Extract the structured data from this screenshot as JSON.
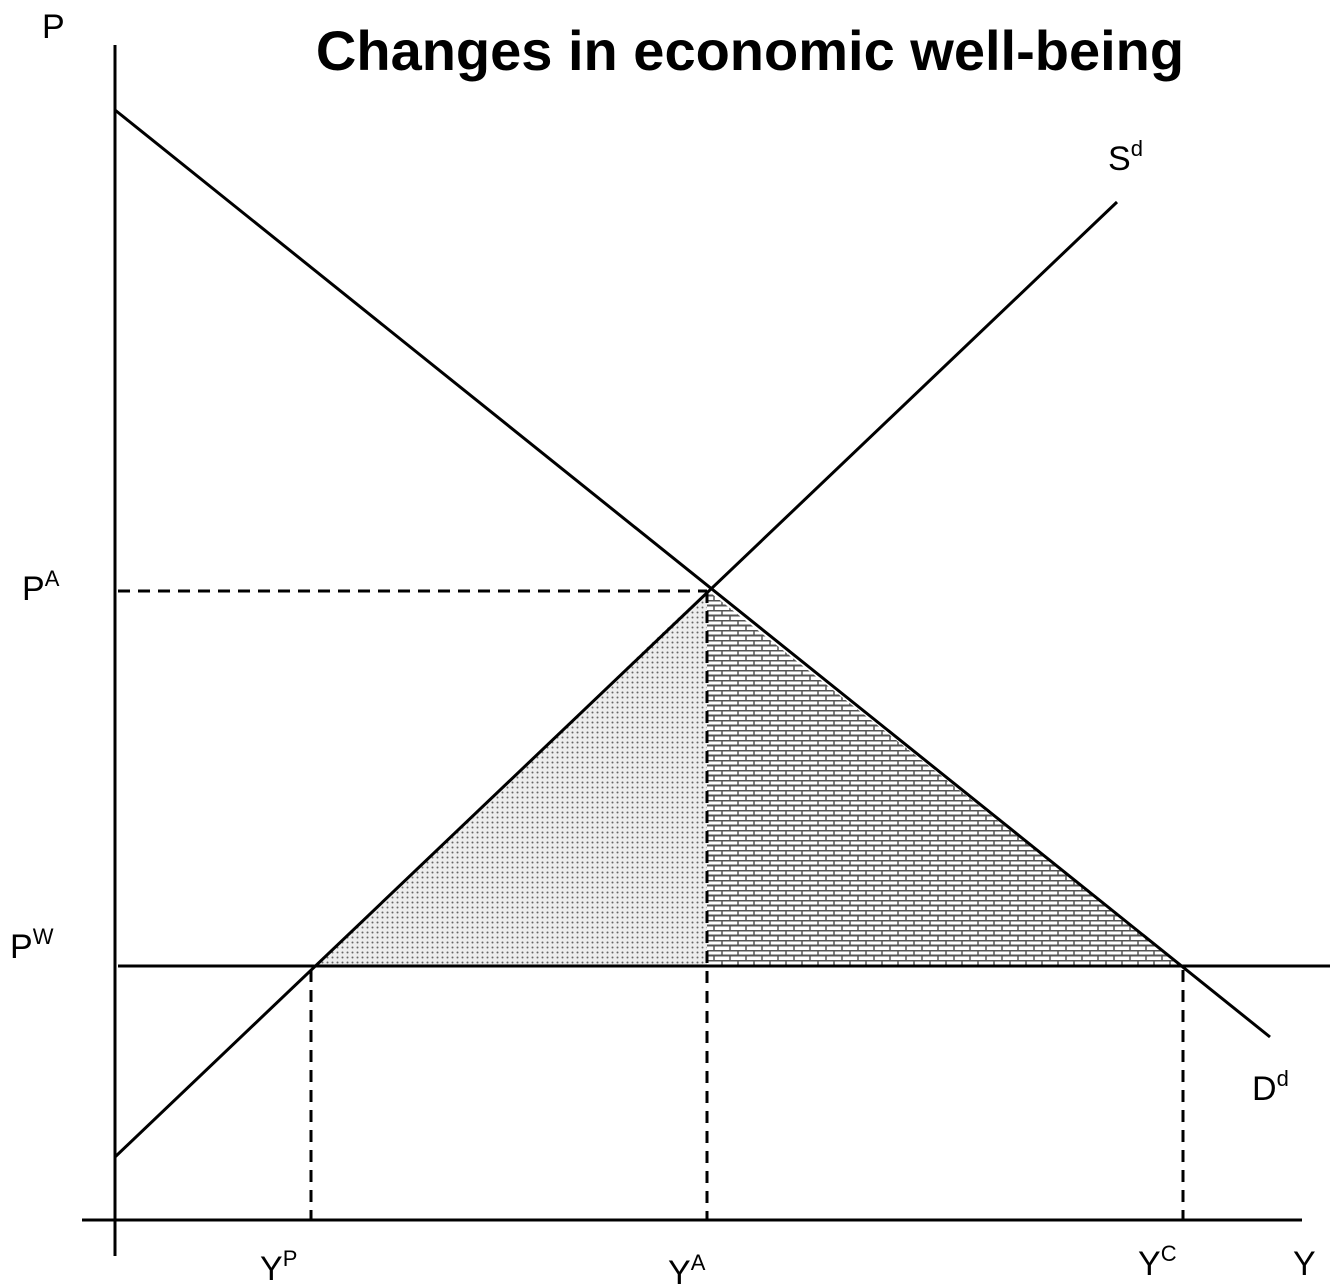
{
  "title": "Changes in economic well-being",
  "axes": {
    "y": "P",
    "x": "Y"
  },
  "curves": {
    "supply": {
      "base": "S",
      "sup": "d"
    },
    "demand": {
      "base": "D",
      "sup": "d"
    }
  },
  "prices": {
    "autarky": {
      "base": "P",
      "sup": "A"
    },
    "world": {
      "base": "P",
      "sup": "W"
    }
  },
  "quantities": {
    "producer": {
      "base": "Y",
      "sup": "P"
    },
    "autarky": {
      "base": "Y",
      "sup": "A"
    },
    "consumer": {
      "base": "Y",
      "sup": "C"
    }
  }
}
